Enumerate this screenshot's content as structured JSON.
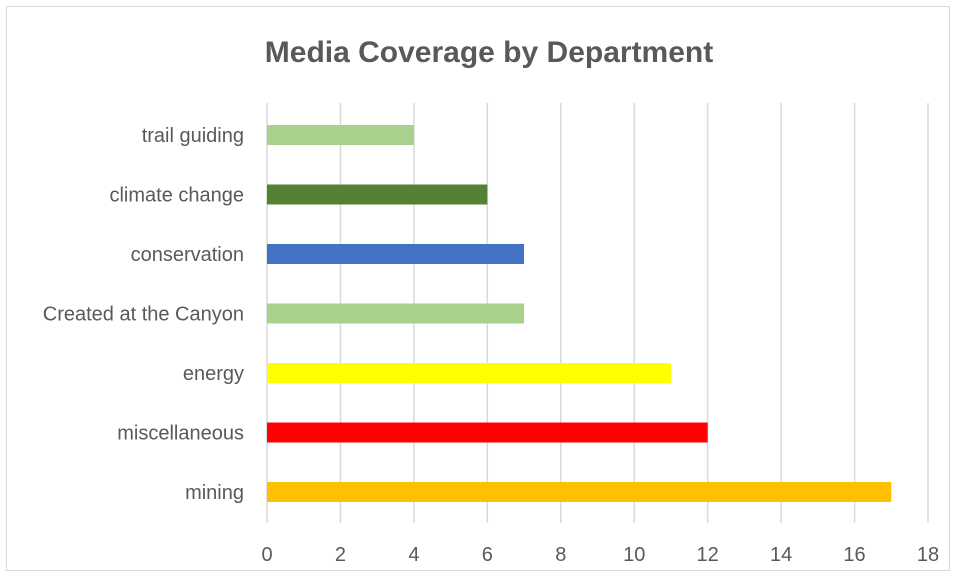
{
  "chart_data": {
    "type": "bar",
    "orientation": "horizontal",
    "title": "Media Coverage by Department",
    "categories": [
      "mining",
      "miscellaneous",
      "energy",
      "Created at the Canyon",
      "conservation",
      "climate change",
      "trail guiding"
    ],
    "values": [
      17,
      12,
      11,
      7,
      7,
      6,
      4
    ],
    "colors": [
      "#ffc000",
      "#ff0000",
      "#ffff00",
      "#a9d18e",
      "#4472c4",
      "#548235",
      "#a9d18e"
    ],
    "xticks": [
      0,
      2,
      4,
      6,
      8,
      10,
      12,
      14,
      16,
      18
    ],
    "xlim": [
      0,
      18
    ],
    "xlabel": "",
    "ylabel": "",
    "grid": true,
    "legend": "none"
  }
}
